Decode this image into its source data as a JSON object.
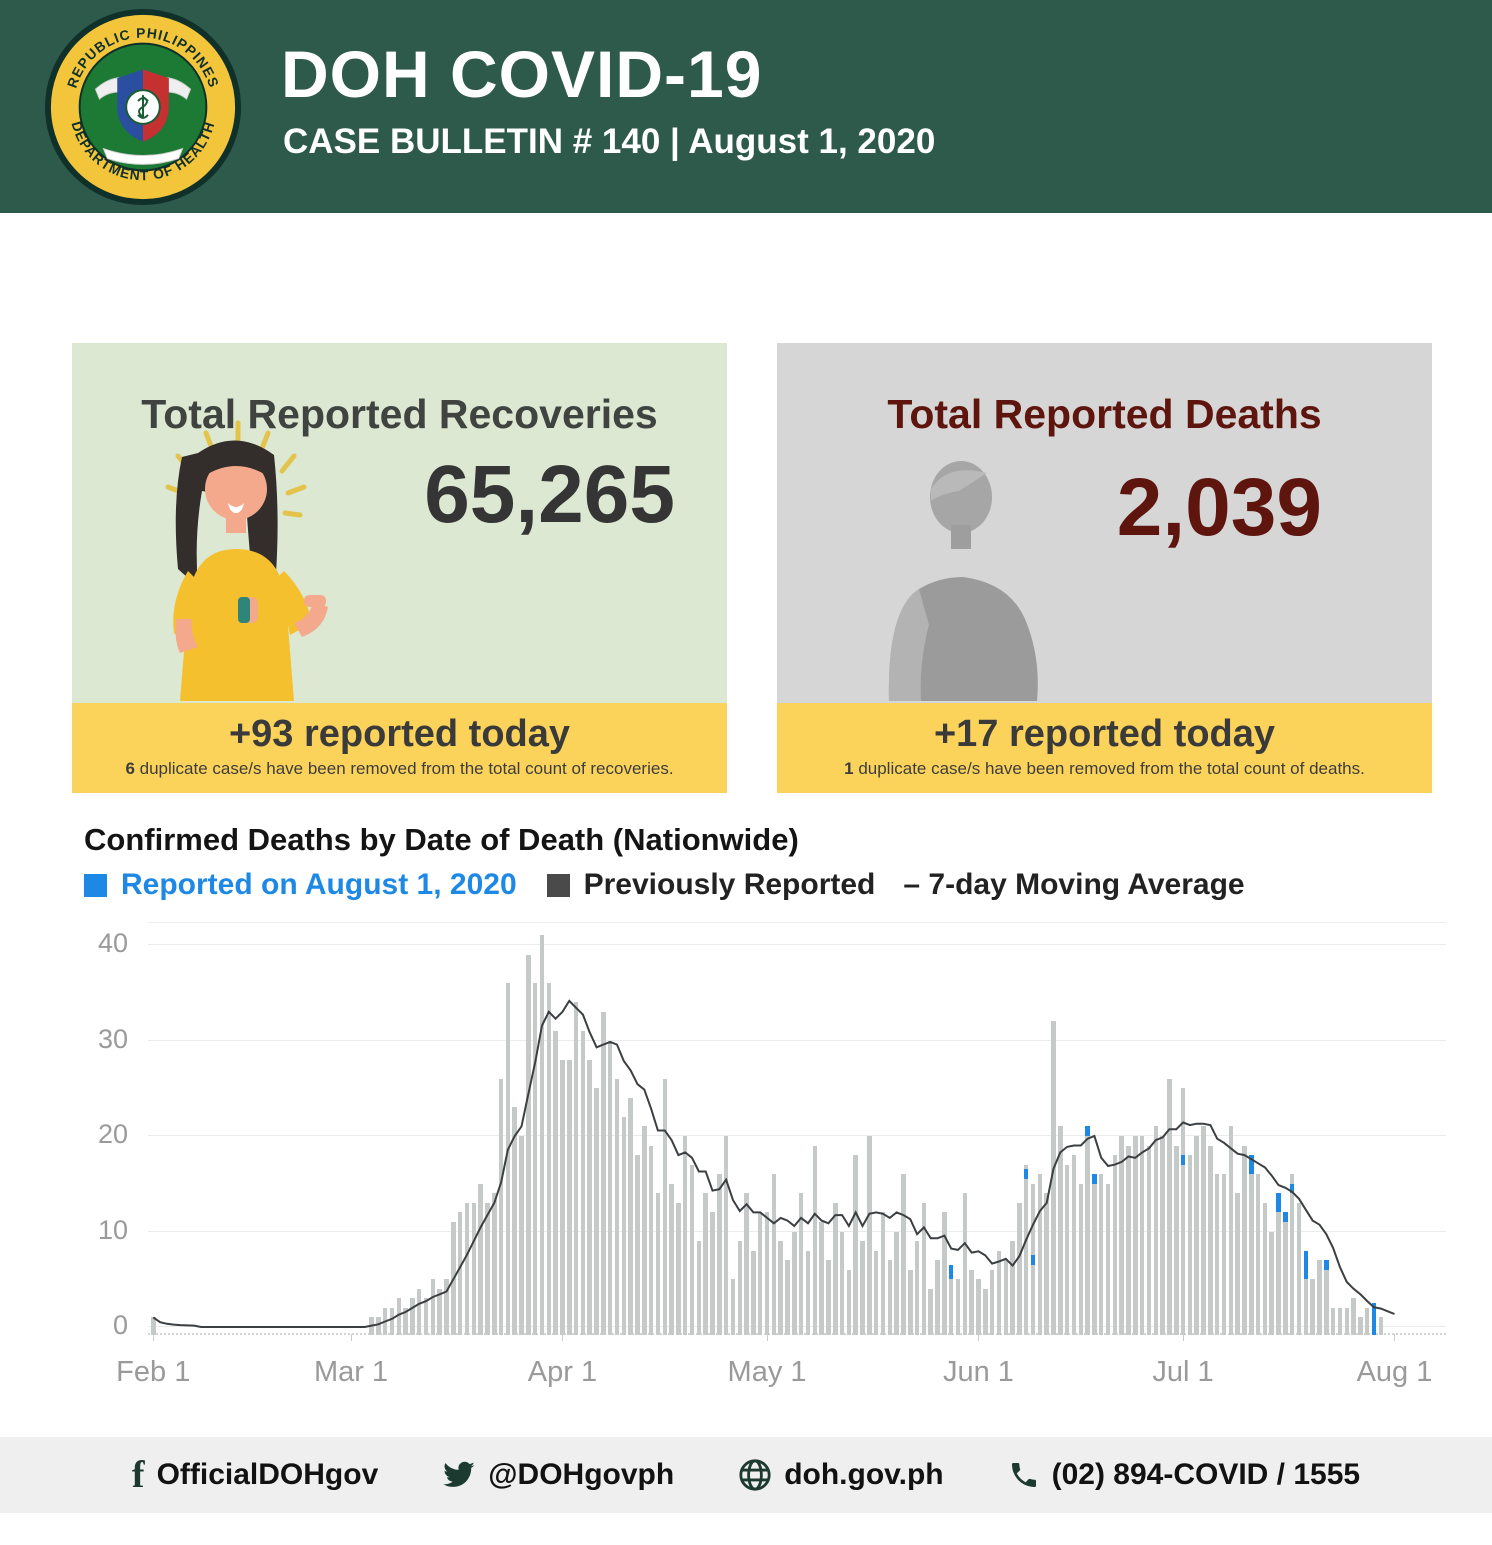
{
  "header": {
    "title": "DOH COVID-19",
    "subtitle": "CASE BULLETIN # 140 | August 1, 2020"
  },
  "recoveries_card": {
    "title": "Total Reported Recoveries",
    "value": "65,265",
    "delta_line": "+93 reported today",
    "note_bold": "6",
    "note_rest": " duplicate case/s have been removed from the total count of recoveries."
  },
  "deaths_card": {
    "title": "Total Reported Deaths",
    "value": "2,039",
    "delta_line": "+17 reported today",
    "note_bold": "1",
    "note_rest": " duplicate case/s have been removed from the total count of deaths."
  },
  "chart": {
    "title": "Confirmed Deaths by Date of Death (Nationwide)",
    "legend": [
      {
        "label": "Reported on August 1, 2020",
        "color": "#1e88e5"
      },
      {
        "label": "Previously Reported",
        "color": "#4a4a4a"
      },
      {
        "label": "– 7-day Moving Average"
      }
    ]
  },
  "chart_data": {
    "type": "bar",
    "title": "Confirmed Deaths by Date of Death (Nationwide)",
    "x_start": "Feb 1, 2020",
    "x_end": "Aug 1, 2020",
    "x_ticks": [
      "Feb 1",
      "Mar 1",
      "Apr 1",
      "May 1",
      "Jun 1",
      "Jul 1",
      "Aug 1"
    ],
    "x_tick_day_index": [
      0,
      29,
      60,
      90,
      121,
      151,
      182
    ],
    "y_ticks": [
      0,
      10,
      20,
      30,
      40
    ],
    "ylim": [
      0,
      42
    ],
    "grid": true,
    "legend_position": "top",
    "series": [
      {
        "name": "Previously Reported",
        "color": "#c5cac9",
        "values": [
          1,
          0,
          0,
          0,
          0,
          0,
          0,
          0,
          0,
          0,
          0,
          0,
          0,
          0,
          0,
          0,
          0,
          0,
          0,
          0,
          0,
          0,
          0,
          0,
          0,
          0,
          0,
          0,
          0,
          0,
          0,
          0,
          1,
          1,
          2,
          2,
          3,
          2,
          3,
          4,
          3,
          5,
          4,
          5,
          11,
          12,
          13,
          13,
          15,
          13,
          14,
          26,
          36,
          23,
          20,
          39,
          36,
          41,
          36,
          31,
          28,
          28,
          34,
          31,
          28,
          25,
          33,
          30,
          26,
          22,
          24,
          18,
          21,
          19,
          14,
          26,
          15,
          13,
          20,
          17,
          9,
          14,
          12,
          16,
          20,
          5,
          9,
          14,
          8,
          12,
          12,
          16,
          9,
          7,
          10,
          14,
          8,
          19,
          11,
          7,
          13,
          10,
          6,
          18,
          9,
          20,
          8,
          12,
          7,
          10,
          16,
          6,
          9,
          13,
          4,
          7,
          12,
          5,
          5,
          14,
          6,
          5,
          4,
          6,
          8,
          7,
          9,
          13,
          17,
          15,
          16,
          14,
          32,
          21,
          17,
          18,
          15,
          20,
          15,
          16,
          15,
          18,
          20,
          19,
          20,
          20,
          19,
          21,
          20,
          26,
          19,
          25,
          18,
          20,
          21,
          19,
          16,
          16,
          21,
          14,
          19,
          16,
          16,
          13,
          10,
          12,
          11,
          16,
          13,
          5,
          5,
          7,
          6,
          2,
          2,
          2,
          3,
          1,
          2,
          0,
          1,
          0,
          0
        ]
      },
      {
        "name": "Reported on August 1, 2020",
        "color": "#1e88e5",
        "marks": [
          {
            "day": 117,
            "offset": 5,
            "height": 1.5
          },
          {
            "day": 128,
            "offset": 15.5,
            "height": 1
          },
          {
            "day": 129,
            "offset": 6.5,
            "height": 1
          },
          {
            "day": 137,
            "offset": 20,
            "height": 1
          },
          {
            "day": 138,
            "offset": 15,
            "height": 1
          },
          {
            "day": 151,
            "offset": 17,
            "height": 1
          },
          {
            "day": 161,
            "offset": 16,
            "height": 2
          },
          {
            "day": 165,
            "offset": 12,
            "height": 2
          },
          {
            "day": 166,
            "offset": 11,
            "height": 1
          },
          {
            "day": 167,
            "offset": 14,
            "height": 1
          },
          {
            "day": 169,
            "offset": 5,
            "height": 3
          },
          {
            "day": 172,
            "offset": 6,
            "height": 1
          },
          {
            "day": 179,
            "offset": 0,
            "height": 2.5
          }
        ]
      },
      {
        "name": "7-day Moving Average",
        "type": "line",
        "color": "#3b3f42",
        "window": 7
      }
    ]
  },
  "footer": {
    "items": [
      {
        "icon": "facebook-icon",
        "label": "OfficialDOHgov"
      },
      {
        "icon": "twitter-icon",
        "label": "@DOHgovph"
      },
      {
        "icon": "globe-icon",
        "label": "doh.gov.ph"
      },
      {
        "icon": "phone-icon",
        "label": "(02) 894-COVID / 1555"
      }
    ]
  },
  "colors": {
    "header_green": "#2d5a4b",
    "card_green": "#dce8d2",
    "card_gray": "#d6d6d6",
    "band_yellow": "#fbd35a",
    "maroon": "#5e150e",
    "reported_blue": "#1e88e5",
    "bar_gray": "#c5cac9",
    "ma_line": "#3b3f42"
  }
}
